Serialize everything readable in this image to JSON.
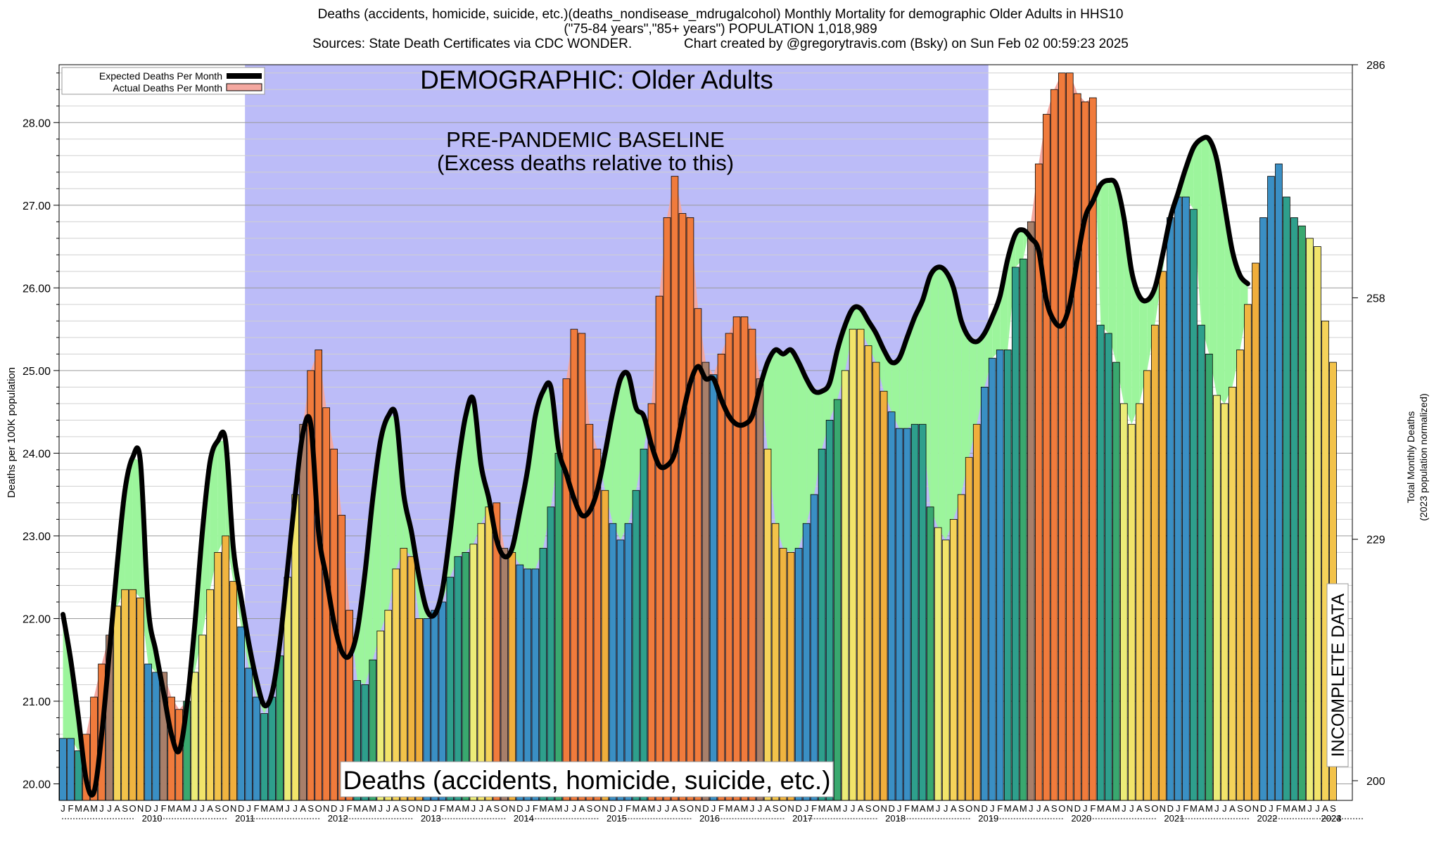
{
  "header": {
    "line1": "Deaths (accidents, homicide, suicide, etc.)(deaths_nondisease_mdrugalcohol) Monthly Mortality for demographic Older Adults in HHS10",
    "line2": "(\"75-84 years\",\"85+ years\") POPULATION 1,018,989",
    "line3": "Sources: State Death Certificates via CDC WONDER.              Chart created by @gregorytravis.com (Bsky) on Sun Feb 02 00:59:23 2025"
  },
  "chart_data": {
    "type": "bar",
    "ylabel": "Deaths per 100K population",
    "y2label_line1": "Total Monthly Deaths",
    "y2label_line2": "(2023 population normalized)",
    "ylim": [
      19.8,
      28.7
    ],
    "y_ticks": [
      "20.00",
      "21.00",
      "22.00",
      "23.00",
      "24.00",
      "25.00",
      "26.00",
      "27.00",
      "28.00"
    ],
    "y2_ticks": [
      "200",
      "229",
      "258",
      "286"
    ],
    "grid": true,
    "legend": {
      "placement": "top-left",
      "entries": [
        "Expected Deaths Per Month",
        "Actual Deaths Per Month"
      ]
    },
    "annotations": {
      "demographic": "DEMOGRAPHIC: Older Adults",
      "baseline_line1": "PRE-PANDEMIC BASELINE",
      "baseline_line2": "(Excess deaths relative to this)",
      "incomplete": "INCOMPLETE DATA",
      "bottom_label": "Deaths (accidents, homicide, suicide, etc.)"
    },
    "month_letters": [
      "J",
      "F",
      "M",
      "A",
      "M",
      "J",
      "J",
      "A",
      "S",
      "O",
      "N",
      "D"
    ],
    "years": [
      "2010",
      "2011",
      "2012",
      "2013",
      "2014",
      "2015",
      "2016",
      "2017",
      "2018",
      "2019",
      "2020",
      "2021",
      "2022",
      "2023",
      "2024"
    ],
    "start": "2010-01",
    "baseline_period": [
      "2012-01",
      "2019-12"
    ],
    "incomplete_from": "2024-07",
    "series": [
      {
        "name": "Actual Deaths Per Month",
        "values": [
          20.55,
          20.55,
          20.4,
          20.6,
          21.05,
          21.45,
          21.8,
          22.15,
          22.35,
          22.35,
          22.25,
          21.45,
          21.35,
          21.35,
          21.05,
          20.9,
          21.0,
          21.35,
          21.8,
          22.35,
          22.8,
          23.0,
          22.45,
          21.9,
          21.4,
          21.05,
          20.85,
          21.05,
          21.55,
          22.5,
          23.5,
          24.35,
          25.0,
          25.25,
          24.55,
          24.05,
          23.25,
          22.1,
          21.25,
          21.2,
          21.5,
          21.85,
          22.1,
          22.6,
          22.85,
          22.75,
          22.0,
          22.0,
          22.1,
          22.2,
          22.5,
          22.75,
          22.8,
          22.9,
          23.15,
          23.35,
          23.4,
          22.85,
          22.8,
          22.65,
          22.6,
          22.6,
          22.85,
          23.35,
          24.0,
          24.9,
          25.5,
          25.45,
          24.35,
          24.05,
          23.55,
          23.15,
          22.95,
          23.15,
          23.55,
          24.05,
          24.6,
          25.9,
          26.85,
          27.35,
          26.9,
          26.85,
          25.75,
          25.1,
          24.95,
          25.2,
          25.45,
          25.65,
          25.65,
          25.5,
          24.9,
          24.05,
          23.15,
          22.85,
          22.8,
          22.85,
          23.15,
          23.5,
          24.05,
          24.4,
          24.65,
          25.0,
          25.5,
          25.5,
          25.3,
          25.1,
          24.75,
          24.5,
          24.3,
          24.3,
          24.35,
          24.35,
          23.35,
          23.1,
          22.95,
          23.2,
          23.5,
          23.95,
          24.35,
          24.8,
          25.15,
          25.25,
          25.25,
          26.25,
          26.35,
          26.8,
          27.5,
          28.1,
          28.4,
          28.6,
          28.6,
          28.35,
          28.25,
          28.3,
          25.55,
          25.45,
          25.1,
          24.6,
          24.35,
          24.6,
          25.0,
          25.55,
          26.2,
          26.85,
          27.1,
          27.1,
          26.95,
          25.55,
          25.2,
          24.7,
          24.6,
          24.8,
          25.25,
          25.8,
          26.3,
          26.85,
          27.35,
          27.5,
          27.1,
          26.85,
          26.75,
          26.6,
          26.5,
          25.6,
          25.1
        ]
      },
      {
        "name": "Expected Deaths Per Month",
        "values": [
          22.05,
          21.5,
          20.8,
          20.05,
          19.9,
          20.6,
          21.6,
          22.65,
          23.55,
          23.95,
          23.9,
          22.15,
          21.6,
          21.1,
          20.6,
          20.4,
          20.95,
          21.9,
          23.05,
          23.9,
          24.15,
          24.15,
          22.85,
          22.25,
          21.7,
          21.25,
          20.95,
          21.1,
          21.7,
          22.6,
          23.5,
          24.25,
          24.35,
          23.05,
          22.5,
          21.95,
          21.6,
          21.55,
          21.85,
          22.55,
          23.45,
          24.15,
          24.45,
          24.45,
          23.5,
          23.05,
          22.5,
          22.1,
          22.05,
          22.35,
          23.05,
          23.85,
          24.45,
          24.65,
          23.85,
          23.45,
          22.95,
          22.75,
          22.85,
          23.3,
          23.8,
          24.45,
          24.75,
          24.8,
          24.05,
          23.75,
          23.45,
          23.25,
          23.3,
          23.55,
          24.0,
          24.5,
          24.9,
          24.95,
          24.55,
          24.45,
          24.1,
          23.85,
          23.85,
          24.0,
          24.45,
          24.85,
          25.05,
          24.9,
          24.9,
          24.65,
          24.45,
          24.35,
          24.35,
          24.45,
          24.8,
          25.1,
          25.25,
          25.2,
          25.25,
          25.1,
          24.9,
          24.75,
          24.75,
          24.85,
          25.25,
          25.55,
          25.75,
          25.75,
          25.6,
          25.45,
          25.25,
          25.1,
          25.15,
          25.4,
          25.65,
          25.85,
          26.15,
          26.25,
          26.2,
          26.0,
          25.6,
          25.4,
          25.35,
          25.45,
          25.65,
          25.9,
          26.35,
          26.65,
          26.7,
          26.6,
          26.45,
          25.85,
          25.6,
          25.55,
          25.8,
          26.35,
          26.85,
          27.05,
          27.25,
          27.3,
          27.25,
          26.85,
          26.2,
          25.9,
          25.85,
          26.0,
          26.4,
          26.85,
          27.15,
          27.45,
          27.7,
          27.8,
          27.8,
          27.55,
          27.0,
          26.45,
          26.15,
          26.05
        ]
      }
    ]
  }
}
